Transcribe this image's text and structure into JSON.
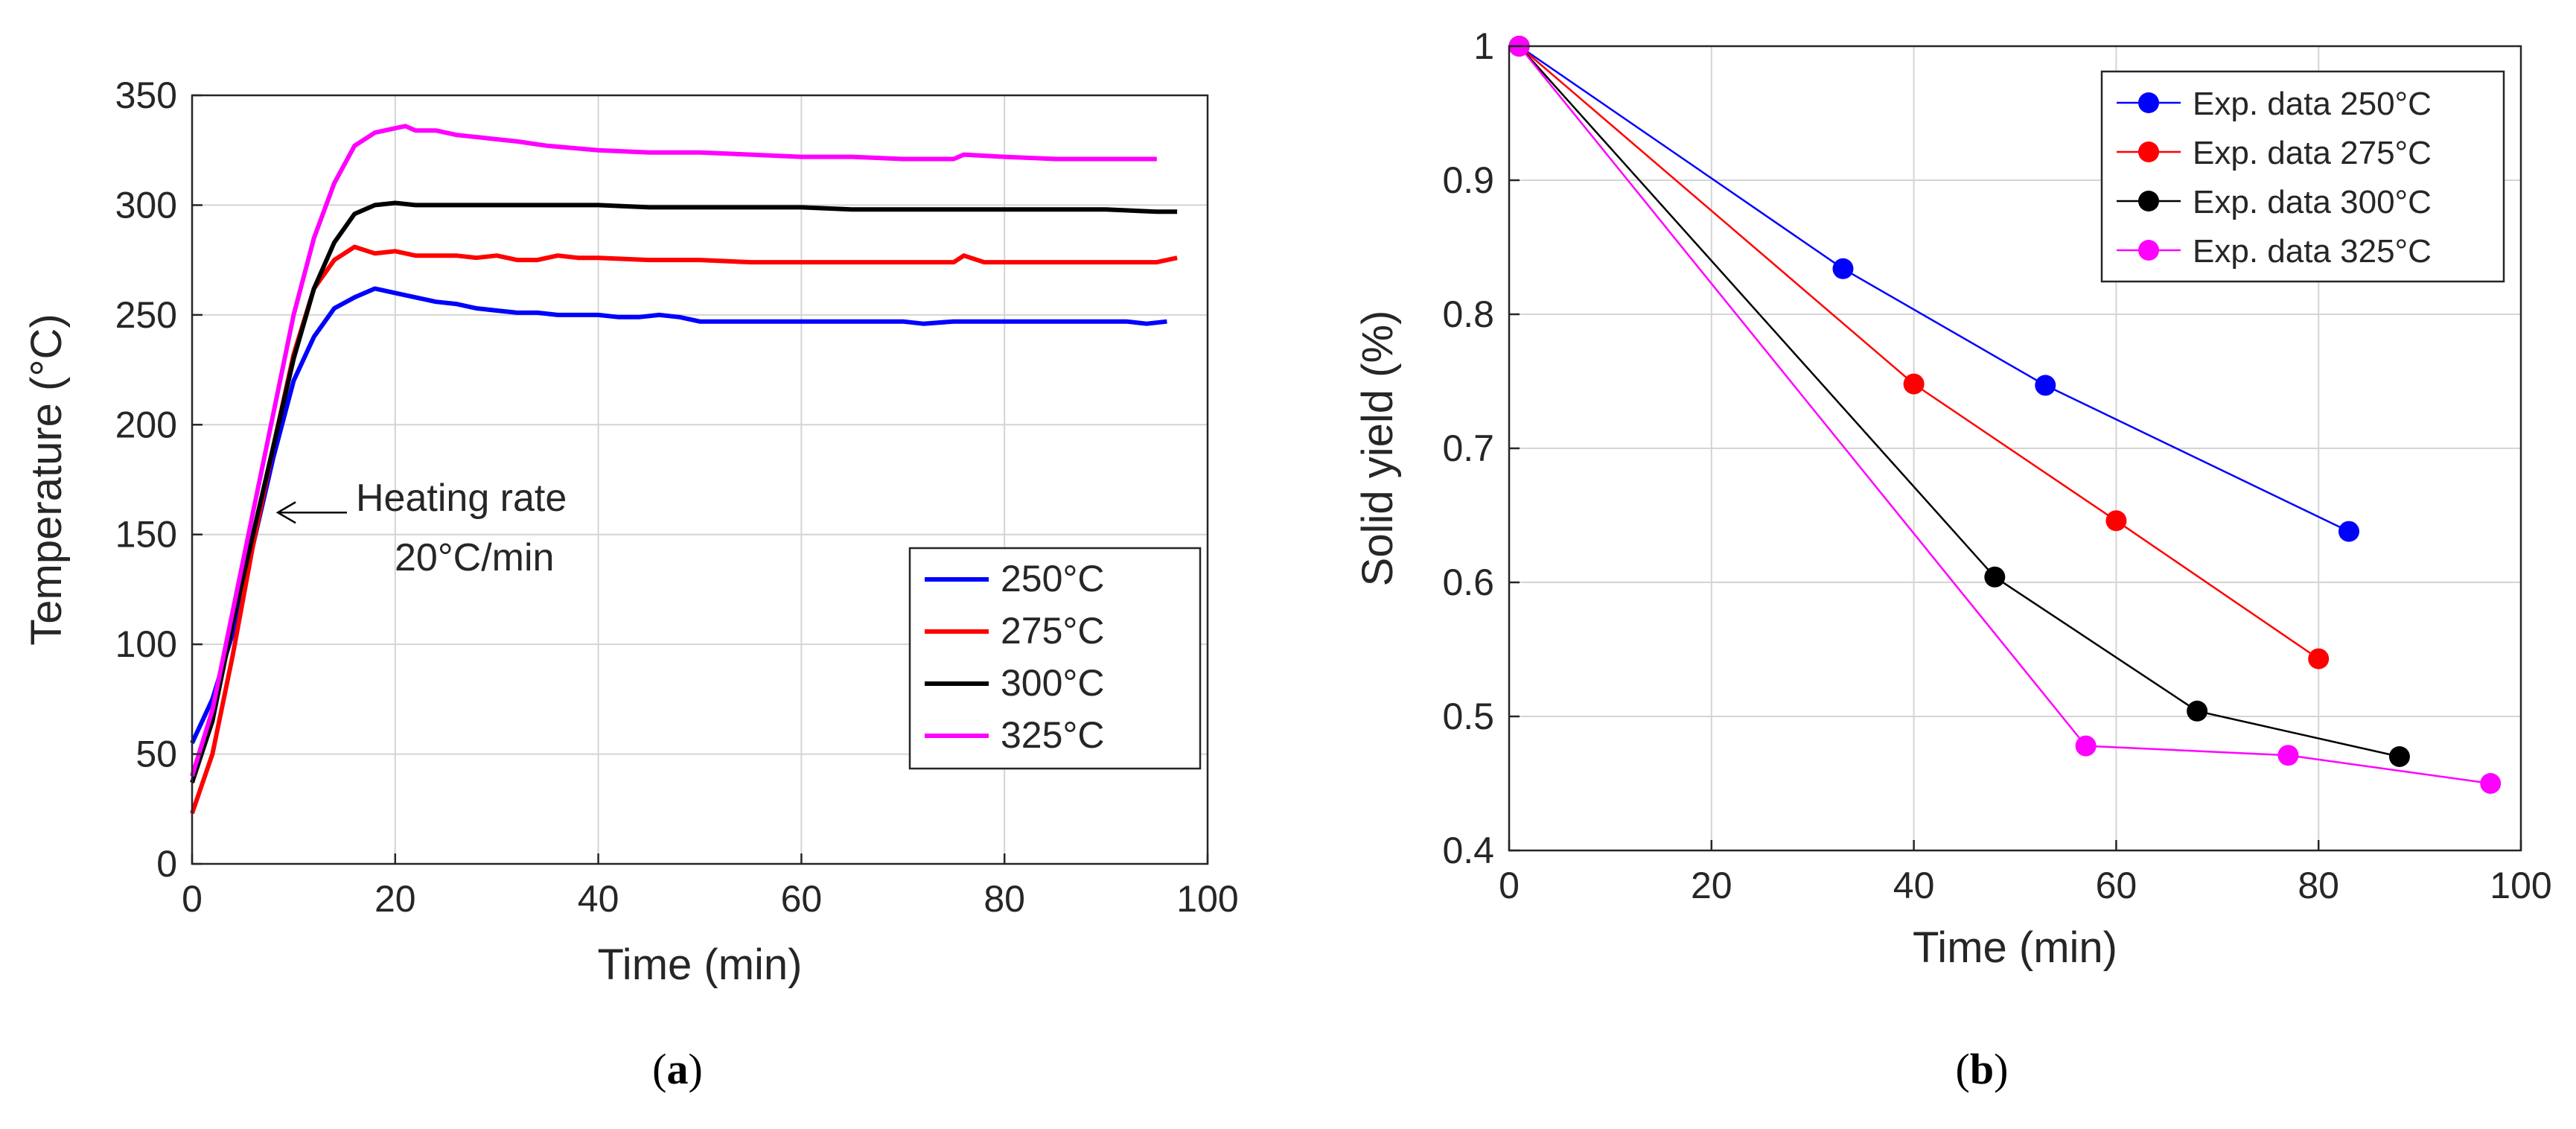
{
  "chart_data": [
    {
      "type": "line",
      "panel": "a",
      "caption_letter": "a",
      "title": "",
      "xlabel": "Time (min)",
      "ylabel": "Temperature (°C)",
      "xlim": [
        0,
        100
      ],
      "ylim": [
        0,
        350
      ],
      "xticks": [
        0,
        20,
        40,
        60,
        80,
        100
      ],
      "yticks": [
        0,
        50,
        100,
        150,
        200,
        250,
        300,
        350
      ],
      "grid": true,
      "legend_position": "lower-right",
      "annotation": {
        "line1": "Heating rate",
        "line2": "20°C/min",
        "arrow_to": [
          8,
          160
        ]
      },
      "series": [
        {
          "name": "250°C",
          "color": "#0000ff",
          "x": [
            0,
            2,
            4,
            6,
            8,
            10,
            12,
            14,
            16,
            18,
            20,
            22,
            24,
            26,
            28,
            30,
            32,
            34,
            36,
            38,
            40,
            42,
            44,
            46,
            48,
            50,
            52,
            54,
            56,
            58,
            60,
            65,
            70,
            72,
            75,
            80,
            85,
            88,
            92,
            94,
            96
          ],
          "y": [
            55,
            75,
            105,
            145,
            185,
            220,
            240,
            253,
            258,
            262,
            260,
            258,
            256,
            255,
            253,
            252,
            251,
            251,
            250,
            250,
            250,
            249,
            249,
            250,
            249,
            247,
            247,
            247,
            247,
            247,
            247,
            247,
            247,
            246,
            247,
            247,
            247,
            247,
            247,
            246,
            247
          ]
        },
        {
          "name": "275°C",
          "color": "#ff0000",
          "x": [
            0,
            2,
            4,
            6,
            8,
            10,
            12,
            14,
            16,
            18,
            20,
            22,
            24,
            26,
            28,
            30,
            32,
            34,
            36,
            38,
            40,
            45,
            50,
            55,
            60,
            65,
            70,
            75,
            76,
            78,
            80,
            85,
            90,
            95,
            97
          ],
          "y": [
            23,
            50,
            95,
            145,
            190,
            232,
            262,
            275,
            281,
            278,
            279,
            277,
            277,
            277,
            276,
            277,
            275,
            275,
            277,
            276,
            276,
            275,
            275,
            274,
            274,
            274,
            274,
            274,
            277,
            274,
            274,
            274,
            274,
            274,
            276
          ]
        },
        {
          "name": "300°C",
          "color": "#000000",
          "x": [
            0,
            2,
            4,
            6,
            8,
            10,
            12,
            14,
            16,
            18,
            20,
            22,
            24,
            26,
            28,
            30,
            35,
            40,
            45,
            50,
            55,
            60,
            65,
            70,
            75,
            80,
            85,
            90,
            95,
            97
          ],
          "y": [
            37,
            65,
            110,
            150,
            190,
            230,
            262,
            283,
            296,
            300,
            301,
            300,
            300,
            300,
            300,
            300,
            300,
            300,
            299,
            299,
            299,
            299,
            298,
            298,
            298,
            298,
            298,
            298,
            297,
            297
          ]
        },
        {
          "name": "325°C",
          "color": "#ff00ff",
          "x": [
            0,
            2,
            4,
            6,
            8,
            10,
            12,
            14,
            16,
            18,
            20,
            21,
            22,
            24,
            26,
            28,
            30,
            32,
            35,
            40,
            45,
            50,
            55,
            60,
            65,
            70,
            75,
            76,
            80,
            85,
            90,
            95
          ],
          "y": [
            40,
            70,
            115,
            160,
            205,
            250,
            285,
            310,
            327,
            333,
            335,
            336,
            334,
            334,
            332,
            331,
            330,
            329,
            327,
            325,
            324,
            324,
            323,
            322,
            322,
            321,
            321,
            323,
            322,
            321,
            321,
            321
          ]
        }
      ]
    },
    {
      "type": "line",
      "panel": "b",
      "caption_letter": "b",
      "title": "",
      "xlabel": "Time (min)",
      "ylabel": "Solid yield (%)",
      "xlim": [
        0,
        100
      ],
      "ylim": [
        0.4,
        1.0
      ],
      "xticks": [
        0,
        20,
        40,
        60,
        80,
        100
      ],
      "yticks": [
        0.4,
        0.5,
        0.6,
        0.7,
        0.8,
        0.9,
        1
      ],
      "ytick_labels": [
        "0.4",
        "0.5",
        "0.6",
        "0.7",
        "0.8",
        "0.9",
        "1"
      ],
      "grid": true,
      "legend_position": "top-right",
      "series": [
        {
          "name": "Exp. data 250°C",
          "color": "#0000ff",
          "x": [
            1,
            33,
            53,
            83
          ],
          "y": [
            1.0,
            0.834,
            0.747,
            0.638
          ]
        },
        {
          "name": "Exp. data 275°C",
          "color": "#ff0000",
          "x": [
            1,
            40,
            60,
            80
          ],
          "y": [
            1.0,
            0.748,
            0.646,
            0.543
          ]
        },
        {
          "name": "Exp. data 300°C",
          "color": "#000000",
          "x": [
            1,
            48,
            68,
            88
          ],
          "y": [
            1.0,
            0.604,
            0.504,
            0.47
          ]
        },
        {
          "name": "Exp. data 325°C",
          "color": "#ff00ff",
          "x": [
            1,
            57,
            77,
            97
          ],
          "y": [
            1.0,
            0.478,
            0.471,
            0.45
          ]
        }
      ]
    }
  ]
}
